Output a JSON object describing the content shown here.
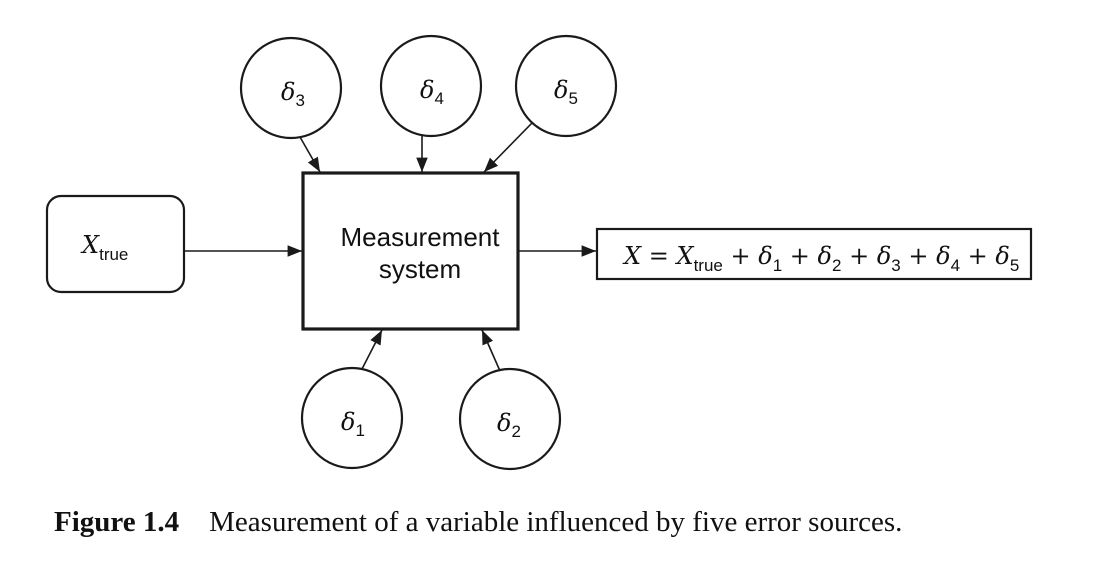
{
  "input": {
    "symbol": "X",
    "subscript": "true"
  },
  "system": {
    "line1": "Measurement",
    "line2": "system"
  },
  "errors": [
    {
      "symbol": "δ",
      "index": "1"
    },
    {
      "symbol": "δ",
      "index": "2"
    },
    {
      "symbol": "δ",
      "index": "3"
    },
    {
      "symbol": "δ",
      "index": "4"
    },
    {
      "symbol": "δ",
      "index": "5"
    }
  ],
  "output": {
    "lhs": "X",
    "eq": " = ",
    "x_symbol": "X",
    "x_subscript": "true",
    "plus": " + "
  },
  "caption": {
    "label": "Figure 1.4",
    "text": "Measurement of a variable influenced by five error sources."
  }
}
